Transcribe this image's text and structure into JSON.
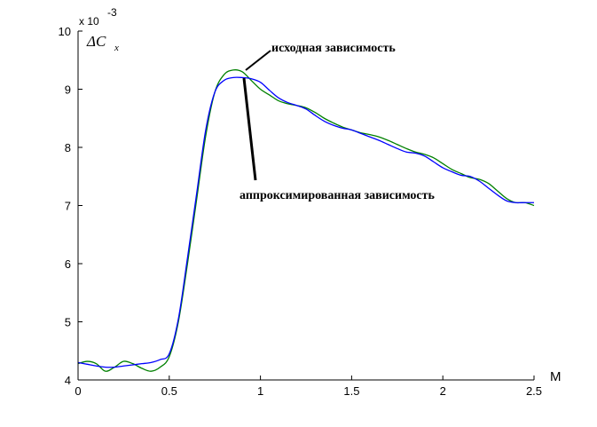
{
  "chart_data": {
    "type": "line",
    "xlabel": "M",
    "ylabel": {
      "main": "ΔC",
      "sub": "x"
    },
    "y_multiplier": {
      "base": "x 10",
      "exponent": "-3"
    },
    "xlim": [
      0,
      2.5
    ],
    "ylim": [
      4,
      10
    ],
    "x_ticks": [
      0,
      0.5,
      1,
      1.5,
      2,
      2.5
    ],
    "x_tick_labels": [
      "0",
      "0.5",
      "1",
      "1.5",
      "2",
      "2.5"
    ],
    "y_ticks": [
      4,
      5,
      6,
      7,
      8,
      9,
      10
    ],
    "y_tick_labels": [
      "4",
      "5",
      "6",
      "7",
      "8",
      "9",
      "10"
    ],
    "grid": false,
    "series": [
      {
        "color": "#008000",
        "x": [
          0,
          0.05,
          0.1,
          0.15,
          0.2,
          0.25,
          0.3,
          0.35,
          0.4,
          0.45,
          0.5,
          0.55,
          0.6,
          0.65,
          0.7,
          0.75,
          0.8,
          0.85,
          0.9,
          0.95,
          1.0,
          1.05,
          1.1,
          1.15,
          1.2,
          1.25,
          1.3,
          1.35,
          1.4,
          1.45,
          1.5,
          1.55,
          1.6,
          1.65,
          1.7,
          1.75,
          1.8,
          1.85,
          1.9,
          1.95,
          2.0,
          2.05,
          2.1,
          2.15,
          2.2,
          2.25,
          2.3,
          2.35,
          2.4,
          2.45,
          2.5
        ],
        "y": [
          4.28,
          4.32,
          4.28,
          4.15,
          4.22,
          4.32,
          4.28,
          4.2,
          4.15,
          4.22,
          4.4,
          5.0,
          6.0,
          7.1,
          8.2,
          8.95,
          9.25,
          9.33,
          9.3,
          9.15,
          9.0,
          8.9,
          8.8,
          8.75,
          8.72,
          8.68,
          8.6,
          8.5,
          8.42,
          8.35,
          8.3,
          8.25,
          8.22,
          8.18,
          8.12,
          8.05,
          7.98,
          7.92,
          7.88,
          7.82,
          7.72,
          7.62,
          7.55,
          7.48,
          7.45,
          7.38,
          7.25,
          7.12,
          7.05,
          7.05,
          7.0
        ]
      },
      {
        "color": "#0000ff",
        "x": [
          0,
          0.05,
          0.1,
          0.15,
          0.2,
          0.25,
          0.3,
          0.35,
          0.4,
          0.45,
          0.5,
          0.55,
          0.6,
          0.65,
          0.7,
          0.75,
          0.8,
          0.85,
          0.9,
          0.95,
          1.0,
          1.05,
          1.1,
          1.15,
          1.2,
          1.25,
          1.3,
          1.35,
          1.4,
          1.45,
          1.5,
          1.55,
          1.6,
          1.65,
          1.7,
          1.75,
          1.8,
          1.85,
          1.9,
          1.95,
          2.0,
          2.05,
          2.1,
          2.15,
          2.2,
          2.25,
          2.3,
          2.35,
          2.4,
          2.45,
          2.5
        ],
        "y": [
          4.3,
          4.27,
          4.24,
          4.22,
          4.22,
          4.24,
          4.26,
          4.28,
          4.3,
          4.35,
          4.45,
          5.05,
          6.1,
          7.2,
          8.3,
          8.95,
          9.15,
          9.2,
          9.2,
          9.18,
          9.12,
          8.98,
          8.85,
          8.77,
          8.72,
          8.66,
          8.55,
          8.45,
          8.38,
          8.33,
          8.3,
          8.24,
          8.18,
          8.12,
          8.05,
          7.98,
          7.92,
          7.9,
          7.85,
          7.75,
          7.65,
          7.58,
          7.52,
          7.5,
          7.42,
          7.3,
          7.18,
          7.08,
          7.05,
          7.05,
          7.05
        ]
      }
    ],
    "annotations": [
      {
        "text": "исходная зависимость",
        "point": [
          0.9,
          9.3
        ]
      },
      {
        "text": "аппроксимированная зависимость",
        "point": [
          0.9,
          9.18
        ]
      }
    ]
  }
}
